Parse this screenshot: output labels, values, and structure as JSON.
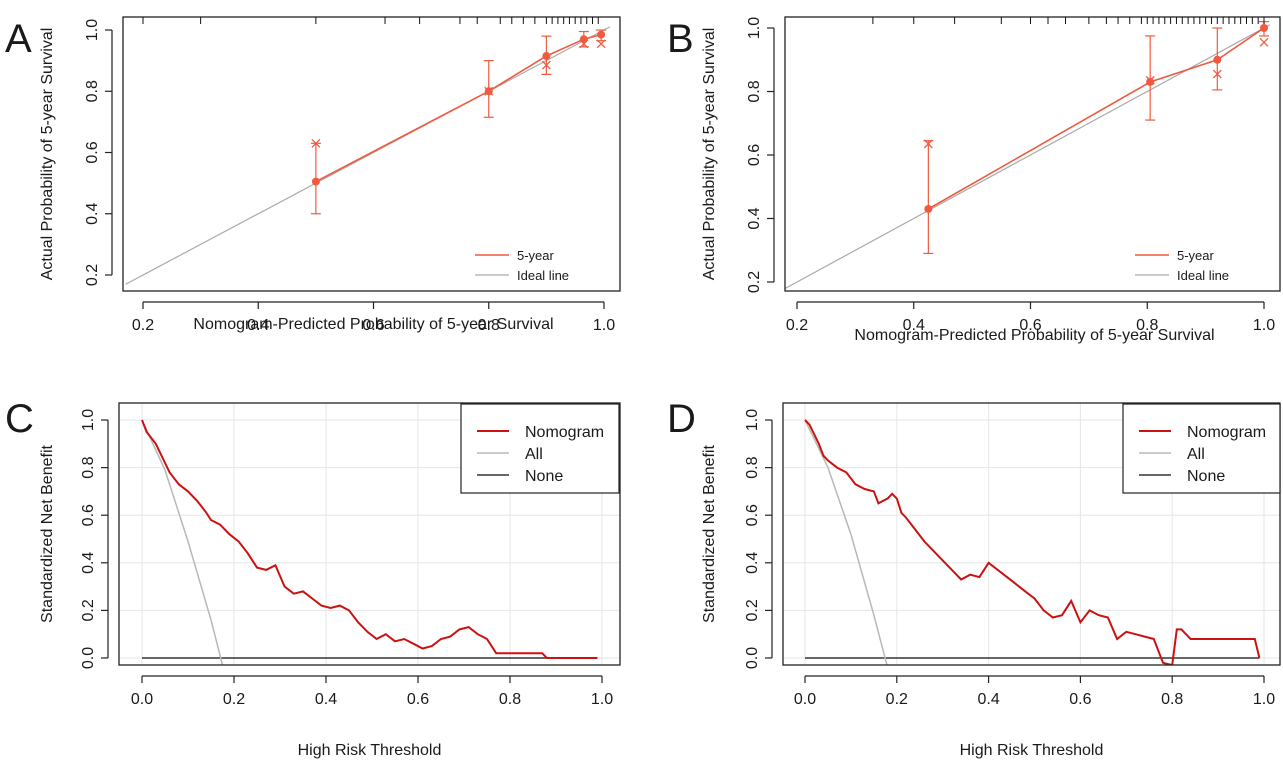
{
  "colors": {
    "calibration": "#f05a3f",
    "ideal": "#aaaaaa",
    "nomogram": "#cc1111",
    "all": "#b8b8b8",
    "none": "#333333",
    "grid": "#e6e6e6"
  },
  "panels": [
    {
      "letter": "A",
      "xlabel": "Nomogram-Predicted Probability of 5-year Survival",
      "ylabel": "Actual Probability of 5-year Survival",
      "xticks": [
        "0.2",
        "0.4",
        "0.6",
        "0.8",
        "1.0"
      ],
      "yticks": [
        "0.2",
        "0.4",
        "0.6",
        "0.8",
        "1.0"
      ],
      "legend": [
        "5-year",
        "Ideal line"
      ]
    },
    {
      "letter": "B",
      "xlabel": "Nomogram-Predicted Probability of 5-year Survival",
      "ylabel": "Actual Probability of 5-year Survival",
      "xticks": [
        "0.2",
        "0.4",
        "0.6",
        "0.8",
        "1.0"
      ],
      "yticks": [
        "0.2",
        "0.4",
        "0.6",
        "0.8",
        "1.0"
      ],
      "legend": [
        "5-year",
        "Ideal line"
      ]
    },
    {
      "letter": "C",
      "xlabel": "High Risk Threshold",
      "ylabel": "Standardized Net Benefit",
      "xticks": [
        "0.0",
        "0.2",
        "0.4",
        "0.6",
        "0.8",
        "1.0"
      ],
      "yticks": [
        "0.0",
        "0.2",
        "0.4",
        "0.6",
        "0.8",
        "1.0"
      ],
      "legend": [
        "Nomogram",
        "All",
        "None"
      ]
    },
    {
      "letter": "D",
      "xlabel": "High Risk Threshold",
      "ylabel": "Standardized Net Benefit",
      "xticks": [
        "0.0",
        "0.2",
        "0.4",
        "0.6",
        "0.8",
        "1.0"
      ],
      "yticks": [
        "0.0",
        "0.2",
        "0.4",
        "0.6",
        "0.8",
        "1.0"
      ],
      "legend": [
        "Nomogram",
        "All",
        "None"
      ]
    }
  ],
  "chart_data": [
    {
      "panel": "A",
      "type": "line",
      "xlim": [
        0.17,
        1.01
      ],
      "ylim": [
        0.17,
        1.03
      ],
      "grid": false,
      "legend_position": "bottom-right",
      "series": [
        {
          "name": "5-year",
          "x": [
            0.5,
            0.8,
            0.9,
            0.965,
            0.995
          ],
          "y": [
            0.505,
            0.8,
            0.915,
            0.97,
            0.985
          ],
          "ci_low": [
            0.4,
            0.715,
            0.855,
            0.945,
            0.965
          ],
          "ci_high": [
            0.63,
            0.9,
            0.98,
            0.995,
            1.0
          ],
          "x_marks": [
            0.63,
            0.8,
            0.885,
            0.955,
            0.955
          ]
        },
        {
          "name": "Ideal line",
          "x": [
            0.17,
            1.01
          ],
          "y": [
            0.17,
            1.01
          ]
        }
      ],
      "rug_x": [
        0.2,
        0.3,
        0.5,
        0.62,
        0.68,
        0.75,
        0.78,
        0.82,
        0.84,
        0.86,
        0.88,
        0.9,
        0.91,
        0.92,
        0.93,
        0.94,
        0.95,
        0.96,
        0.97,
        0.98,
        0.99
      ]
    },
    {
      "panel": "B",
      "type": "line",
      "xlim": [
        0.17,
        1.01
      ],
      "ylim": [
        0.17,
        1.03
      ],
      "grid": false,
      "legend_position": "bottom-right",
      "series": [
        {
          "name": "5-year",
          "x": [
            0.425,
            0.805,
            0.92,
            1.0
          ],
          "y": [
            0.43,
            0.83,
            0.9,
            1.0
          ],
          "ci_low": [
            0.29,
            0.71,
            0.805,
            0.975
          ],
          "ci_high": [
            0.645,
            0.975,
            1.0,
            1.02
          ],
          "x_marks": [
            0.635,
            0.835,
            0.855,
            0.955
          ]
        },
        {
          "name": "Ideal line",
          "x": [
            0.17,
            1.01
          ],
          "y": [
            0.17,
            1.01
          ]
        }
      ],
      "rug_x": [
        0.33,
        0.4,
        0.47,
        0.55,
        0.6,
        0.63,
        0.66,
        0.7,
        0.73,
        0.75,
        0.77,
        0.79,
        0.8,
        0.81,
        0.82,
        0.83,
        0.84,
        0.85,
        0.86,
        0.87,
        0.88,
        0.89,
        0.9,
        0.91,
        0.92,
        0.93,
        0.94,
        0.95,
        0.96,
        0.97,
        0.98,
        0.99,
        1.0
      ]
    },
    {
      "panel": "C",
      "type": "line",
      "xlim": [
        0,
        1
      ],
      "ylim": [
        -0.04,
        1.02
      ],
      "grid": true,
      "legend_position": "top-right",
      "series": [
        {
          "name": "Nomogram",
          "x": [
            0.0,
            0.01,
            0.03,
            0.04,
            0.06,
            0.08,
            0.1,
            0.12,
            0.14,
            0.15,
            0.17,
            0.19,
            0.21,
            0.23,
            0.25,
            0.27,
            0.29,
            0.31,
            0.33,
            0.35,
            0.37,
            0.39,
            0.41,
            0.43,
            0.45,
            0.47,
            0.49,
            0.51,
            0.53,
            0.55,
            0.57,
            0.59,
            0.61,
            0.63,
            0.65,
            0.67,
            0.69,
            0.71,
            0.73,
            0.75,
            0.77,
            0.79,
            0.81,
            0.83,
            0.85,
            0.87,
            0.88,
            0.9,
            0.92,
            0.95,
            0.99
          ],
          "y": [
            1.0,
            0.95,
            0.9,
            0.86,
            0.78,
            0.73,
            0.7,
            0.66,
            0.61,
            0.58,
            0.56,
            0.52,
            0.49,
            0.44,
            0.38,
            0.37,
            0.39,
            0.3,
            0.27,
            0.28,
            0.25,
            0.22,
            0.21,
            0.22,
            0.2,
            0.15,
            0.11,
            0.08,
            0.1,
            0.07,
            0.08,
            0.06,
            0.04,
            0.05,
            0.08,
            0.09,
            0.12,
            0.13,
            0.1,
            0.08,
            0.02,
            0.02,
            0.02,
            0.02,
            0.02,
            0.02,
            0.0,
            0.0,
            0.0,
            0.0,
            0.0
          ]
        },
        {
          "name": "All",
          "x": [
            0.0,
            0.05,
            0.1,
            0.15,
            0.175
          ],
          "y": [
            1.0,
            0.79,
            0.49,
            0.16,
            -0.03
          ]
        },
        {
          "name": "None",
          "x": [
            0.0,
            0.99
          ],
          "y": [
            0.0,
            0.0
          ]
        }
      ]
    },
    {
      "panel": "D",
      "type": "line",
      "xlim": [
        0,
        1
      ],
      "ylim": [
        -0.04,
        1.02
      ],
      "grid": true,
      "legend_position": "top-right",
      "series": [
        {
          "name": "Nomogram",
          "x": [
            0.0,
            0.01,
            0.02,
            0.03,
            0.04,
            0.05,
            0.07,
            0.09,
            0.11,
            0.13,
            0.15,
            0.16,
            0.17,
            0.18,
            0.19,
            0.2,
            0.21,
            0.22,
            0.24,
            0.26,
            0.28,
            0.3,
            0.32,
            0.34,
            0.36,
            0.38,
            0.4,
            0.42,
            0.44,
            0.46,
            0.48,
            0.5,
            0.52,
            0.54,
            0.56,
            0.58,
            0.6,
            0.62,
            0.64,
            0.66,
            0.68,
            0.7,
            0.72,
            0.74,
            0.76,
            0.78,
            0.8,
            0.81,
            0.82,
            0.84,
            0.86,
            0.88,
            0.9,
            0.92,
            0.94,
            0.96,
            0.98,
            0.99
          ],
          "y": [
            1.0,
            0.98,
            0.94,
            0.9,
            0.85,
            0.83,
            0.8,
            0.78,
            0.73,
            0.71,
            0.7,
            0.65,
            0.66,
            0.67,
            0.69,
            0.67,
            0.61,
            0.59,
            0.54,
            0.49,
            0.45,
            0.41,
            0.37,
            0.33,
            0.35,
            0.34,
            0.4,
            0.37,
            0.34,
            0.31,
            0.28,
            0.25,
            0.2,
            0.17,
            0.18,
            0.24,
            0.15,
            0.2,
            0.18,
            0.17,
            0.08,
            0.11,
            0.1,
            0.09,
            0.08,
            -0.02,
            -0.03,
            0.12,
            0.12,
            0.08,
            0.08,
            0.08,
            0.08,
            0.08,
            0.08,
            0.08,
            0.08,
            0.0
          ]
        },
        {
          "name": "All",
          "x": [
            0.0,
            0.05,
            0.1,
            0.15,
            0.18
          ],
          "y": [
            1.0,
            0.8,
            0.52,
            0.18,
            -0.04
          ]
        },
        {
          "name": "None",
          "x": [
            0.0,
            0.99
          ],
          "y": [
            0.0,
            0.0
          ]
        }
      ]
    }
  ]
}
